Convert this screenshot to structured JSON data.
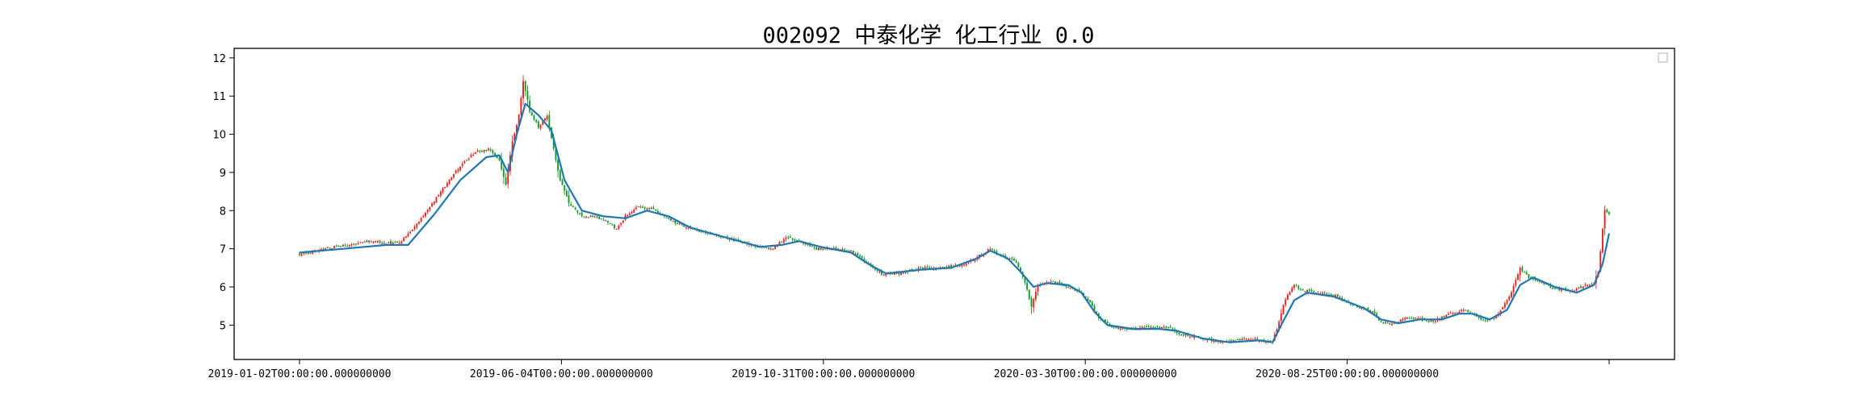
{
  "chart_data": {
    "type": "candlestick",
    "title": "002092 中泰化学 化工行业 0.0",
    "xlabel": "",
    "ylabel": "",
    "ylim": [
      4.1,
      12.25
    ],
    "yticks": [
      5,
      6,
      7,
      8,
      9,
      10,
      11,
      12
    ],
    "xtick_labels": [
      "2019-01-02T00:00:00.000000000",
      "2019-06-04T00:00:00.000000000",
      "2019-10-31T00:00:00.000000000",
      "2020-03-30T00:00:00.000000000",
      "2020-08-25T00:00:00.000000000",
      ""
    ],
    "grid": false,
    "legend": "top-right (empty)",
    "up_color": "#e8201c",
    "down_color": "#169a2a",
    "ma_color": "#1f77b4",
    "date_range": [
      "2019-01-02",
      "2021-01-22"
    ],
    "price_path": [
      [
        0,
        6.85
      ],
      [
        8,
        6.95
      ],
      [
        16,
        7.05
      ],
      [
        24,
        7.1
      ],
      [
        32,
        7.2
      ],
      [
        40,
        7.15
      ],
      [
        46,
        7.15
      ],
      [
        52,
        7.5
      ],
      [
        58,
        7.95
      ],
      [
        64,
        8.4
      ],
      [
        70,
        8.9
      ],
      [
        76,
        9.3
      ],
      [
        82,
        9.55
      ],
      [
        88,
        9.6
      ],
      [
        92,
        9.3
      ],
      [
        95,
        8.7
      ],
      [
        98,
        9.8
      ],
      [
        101,
        10.5
      ],
      [
        103,
        11.4
      ],
      [
        106,
        10.6
      ],
      [
        110,
        10.2
      ],
      [
        114,
        10.5
      ],
      [
        117,
        9.6
      ],
      [
        120,
        8.8
      ],
      [
        124,
        8.2
      ],
      [
        130,
        7.85
      ],
      [
        136,
        7.85
      ],
      [
        142,
        7.7
      ],
      [
        146,
        7.5
      ],
      [
        150,
        7.85
      ],
      [
        156,
        8.1
      ],
      [
        162,
        8.05
      ],
      [
        168,
        7.85
      ],
      [
        174,
        7.65
      ],
      [
        180,
        7.55
      ],
      [
        188,
        7.4
      ],
      [
        196,
        7.3
      ],
      [
        204,
        7.15
      ],
      [
        212,
        7.05
      ],
      [
        218,
        7.0
      ],
      [
        224,
        7.3
      ],
      [
        230,
        7.2
      ],
      [
        238,
        7.0
      ],
      [
        246,
        7.0
      ],
      [
        254,
        6.95
      ],
      [
        262,
        6.6
      ],
      [
        268,
        6.35
      ],
      [
        276,
        6.35
      ],
      [
        286,
        6.5
      ],
      [
        296,
        6.5
      ],
      [
        306,
        6.6
      ],
      [
        314,
        6.85
      ],
      [
        318,
        7.0
      ],
      [
        324,
        6.8
      ],
      [
        330,
        6.65
      ],
      [
        334,
        6.1
      ],
      [
        337,
        5.5
      ],
      [
        340,
        6.05
      ],
      [
        346,
        6.15
      ],
      [
        354,
        6.0
      ],
      [
        360,
        5.85
      ],
      [
        364,
        5.6
      ],
      [
        368,
        5.2
      ],
      [
        374,
        4.95
      ],
      [
        382,
        4.9
      ],
      [
        392,
        4.95
      ],
      [
        400,
        4.95
      ],
      [
        404,
        4.8
      ],
      [
        412,
        4.7
      ],
      [
        420,
        4.6
      ],
      [
        428,
        4.55
      ],
      [
        434,
        4.65
      ],
      [
        442,
        4.6
      ],
      [
        446,
        4.55
      ],
      [
        448,
        4.55
      ],
      [
        451,
        5.1
      ],
      [
        454,
        5.7
      ],
      [
        458,
        6.05
      ],
      [
        462,
        5.9
      ],
      [
        470,
        5.85
      ],
      [
        478,
        5.75
      ],
      [
        486,
        5.5
      ],
      [
        494,
        5.35
      ],
      [
        498,
        5.05
      ],
      [
        504,
        5.05
      ],
      [
        510,
        5.2
      ],
      [
        516,
        5.15
      ],
      [
        522,
        5.1
      ],
      [
        530,
        5.3
      ],
      [
        536,
        5.4
      ],
      [
        542,
        5.25
      ],
      [
        546,
        5.1
      ],
      [
        550,
        5.2
      ],
      [
        554,
        5.45
      ],
      [
        558,
        5.85
      ],
      [
        562,
        6.5
      ],
      [
        566,
        6.25
      ],
      [
        572,
        6.1
      ],
      [
        578,
        5.95
      ],
      [
        586,
        5.9
      ],
      [
        592,
        6.05
      ],
      [
        596,
        6.1
      ],
      [
        598,
        6.4
      ],
      [
        600,
        7.5
      ],
      [
        601,
        8.0
      ],
      [
        603,
        7.9
      ]
    ],
    "ma_path": [
      [
        0,
        6.9
      ],
      [
        20,
        7.0
      ],
      [
        40,
        7.1
      ],
      [
        50,
        7.1
      ],
      [
        62,
        7.9
      ],
      [
        74,
        8.8
      ],
      [
        86,
        9.4
      ],
      [
        92,
        9.45
      ],
      [
        96,
        9.0
      ],
      [
        100,
        10.0
      ],
      [
        104,
        10.8
      ],
      [
        110,
        10.5
      ],
      [
        116,
        10.1
      ],
      [
        122,
        8.8
      ],
      [
        130,
        8.0
      ],
      [
        140,
        7.85
      ],
      [
        150,
        7.8
      ],
      [
        160,
        8.0
      ],
      [
        170,
        7.85
      ],
      [
        180,
        7.55
      ],
      [
        196,
        7.3
      ],
      [
        212,
        7.05
      ],
      [
        222,
        7.1
      ],
      [
        230,
        7.2
      ],
      [
        240,
        7.05
      ],
      [
        254,
        6.9
      ],
      [
        262,
        6.6
      ],
      [
        270,
        6.35
      ],
      [
        286,
        6.45
      ],
      [
        300,
        6.5
      ],
      [
        312,
        6.75
      ],
      [
        318,
        6.95
      ],
      [
        326,
        6.75
      ],
      [
        332,
        6.4
      ],
      [
        338,
        6.0
      ],
      [
        344,
        6.1
      ],
      [
        354,
        6.05
      ],
      [
        360,
        5.85
      ],
      [
        366,
        5.35
      ],
      [
        372,
        5.0
      ],
      [
        384,
        4.9
      ],
      [
        396,
        4.9
      ],
      [
        404,
        4.85
      ],
      [
        416,
        4.65
      ],
      [
        428,
        4.55
      ],
      [
        442,
        4.6
      ],
      [
        448,
        4.55
      ],
      [
        452,
        5.0
      ],
      [
        458,
        5.65
      ],
      [
        464,
        5.85
      ],
      [
        476,
        5.75
      ],
      [
        490,
        5.45
      ],
      [
        498,
        5.15
      ],
      [
        506,
        5.05
      ],
      [
        516,
        5.15
      ],
      [
        526,
        5.15
      ],
      [
        534,
        5.3
      ],
      [
        540,
        5.3
      ],
      [
        548,
        5.15
      ],
      [
        556,
        5.4
      ],
      [
        562,
        6.05
      ],
      [
        568,
        6.25
      ],
      [
        578,
        6.0
      ],
      [
        588,
        5.85
      ],
      [
        596,
        6.05
      ],
      [
        600,
        6.6
      ],
      [
        603,
        7.4
      ]
    ]
  }
}
